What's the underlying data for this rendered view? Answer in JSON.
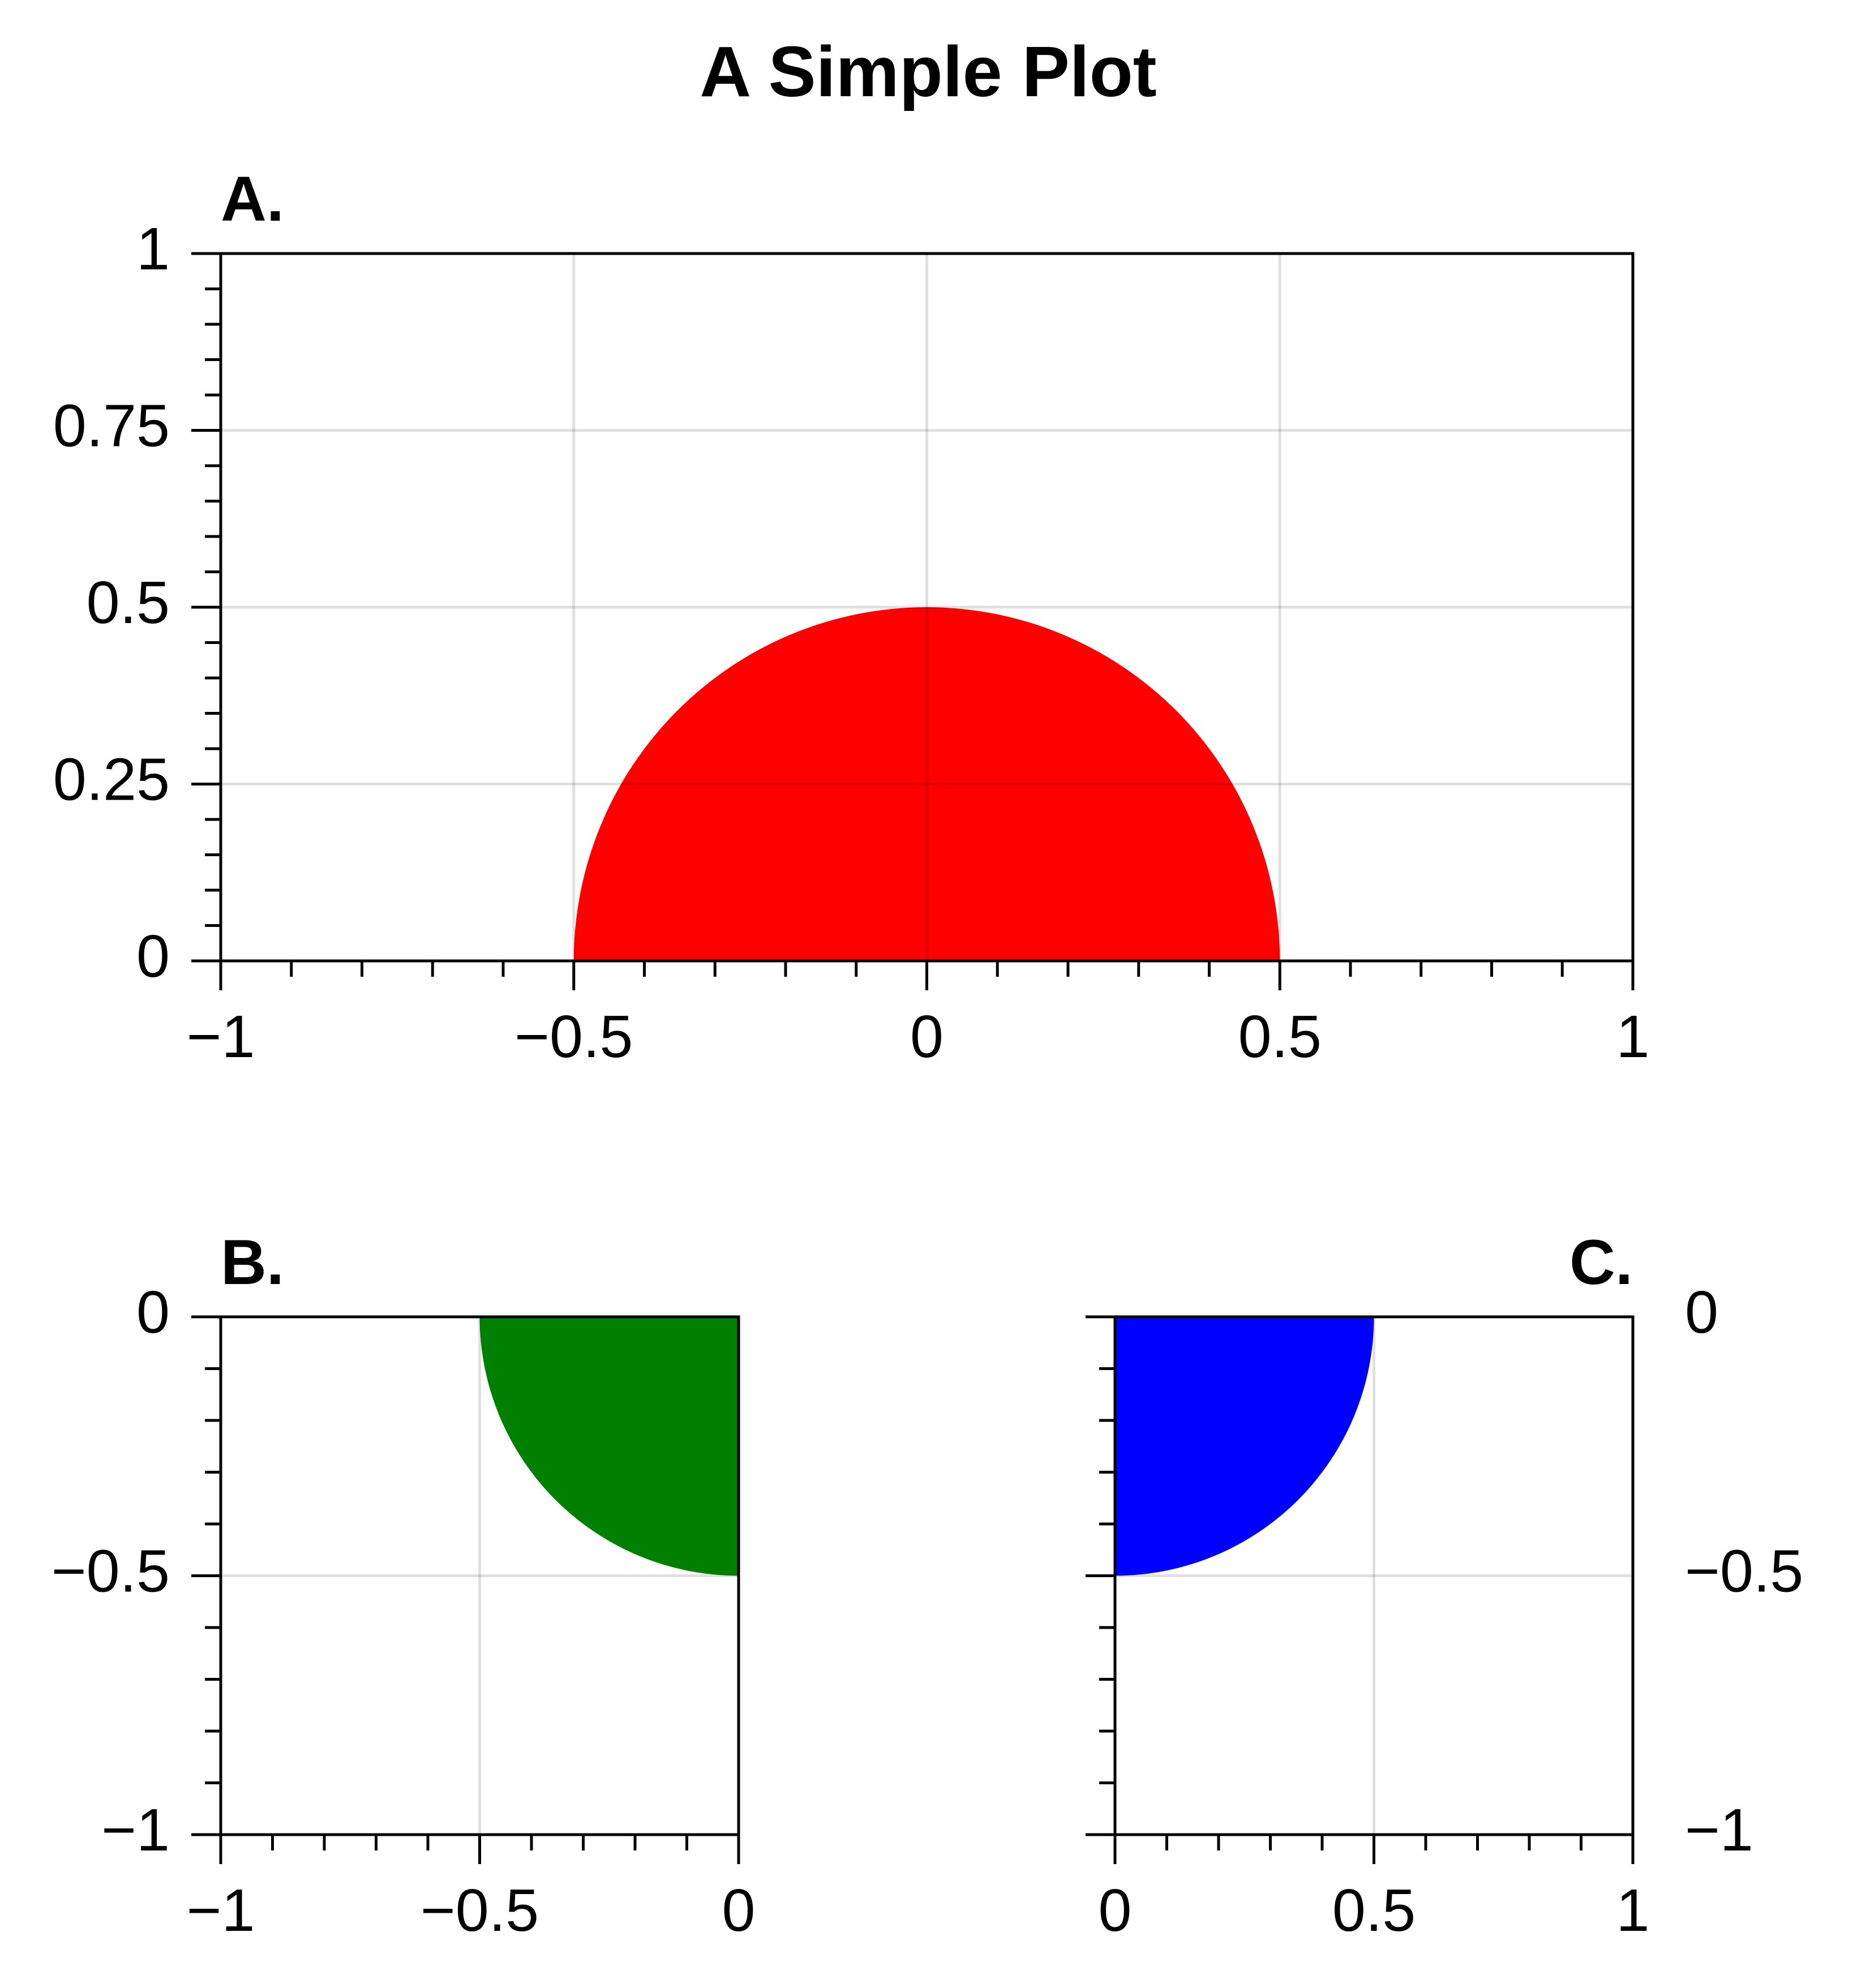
{
  "figure": {
    "title": "A Simple Plot"
  },
  "chart_data": [
    {
      "panel": "A.",
      "type": "area",
      "shape": "upper half-disk",
      "center": [
        0,
        0
      ],
      "radius": 0.5,
      "fill_color": "#ff0000",
      "xlim": [
        -1,
        1
      ],
      "ylim": [
        0,
        1
      ],
      "xticks": [
        -1,
        -0.5,
        0,
        0.5,
        1
      ],
      "xtick_labels": [
        "−1",
        "−0.5",
        "0",
        "0.5",
        "1"
      ],
      "yticks": [
        0,
        0.25,
        0.5,
        0.75,
        1
      ],
      "ytick_labels": [
        "0",
        "0.25",
        "0.5",
        "0.75",
        "1"
      ],
      "x_minor_step": 0.1,
      "y_minor_step": 0.05,
      "yaxis_side": "left",
      "label_align": "left",
      "grid": true
    },
    {
      "panel": "B.",
      "type": "area",
      "shape": "quarter-disk (x ≤ 0, y ≤ 0)",
      "center": [
        0,
        0
      ],
      "radius": 0.5,
      "fill_color": "#008000",
      "xlim": [
        -1,
        0
      ],
      "ylim": [
        -1,
        0
      ],
      "xticks": [
        -1,
        -0.5,
        0
      ],
      "xtick_labels": [
        "−1",
        "−0.5",
        "0"
      ],
      "yticks": [
        -1,
        -0.5,
        0
      ],
      "ytick_labels": [
        "−1",
        "−0.5",
        "0"
      ],
      "x_minor_step": 0.1,
      "y_minor_step": 0.1,
      "yaxis_side": "left",
      "label_align": "left",
      "grid": true
    },
    {
      "panel": "C.",
      "type": "area",
      "shape": "quarter-disk (x ≥ 0, y ≤ 0)",
      "center": [
        0,
        0
      ],
      "radius": 0.5,
      "fill_color": "#0000ff",
      "xlim": [
        0,
        1
      ],
      "ylim": [
        -1,
        0
      ],
      "xticks": [
        0,
        0.5,
        1
      ],
      "xtick_labels": [
        "0",
        "0.5",
        "1"
      ],
      "yticks": [
        -1,
        -0.5,
        0
      ],
      "ytick_labels": [
        "−1",
        "−0.5",
        "0"
      ],
      "x_minor_step": 0.1,
      "y_minor_step": 0.1,
      "yaxis_side": "right",
      "label_align": "right",
      "grid": true
    }
  ]
}
